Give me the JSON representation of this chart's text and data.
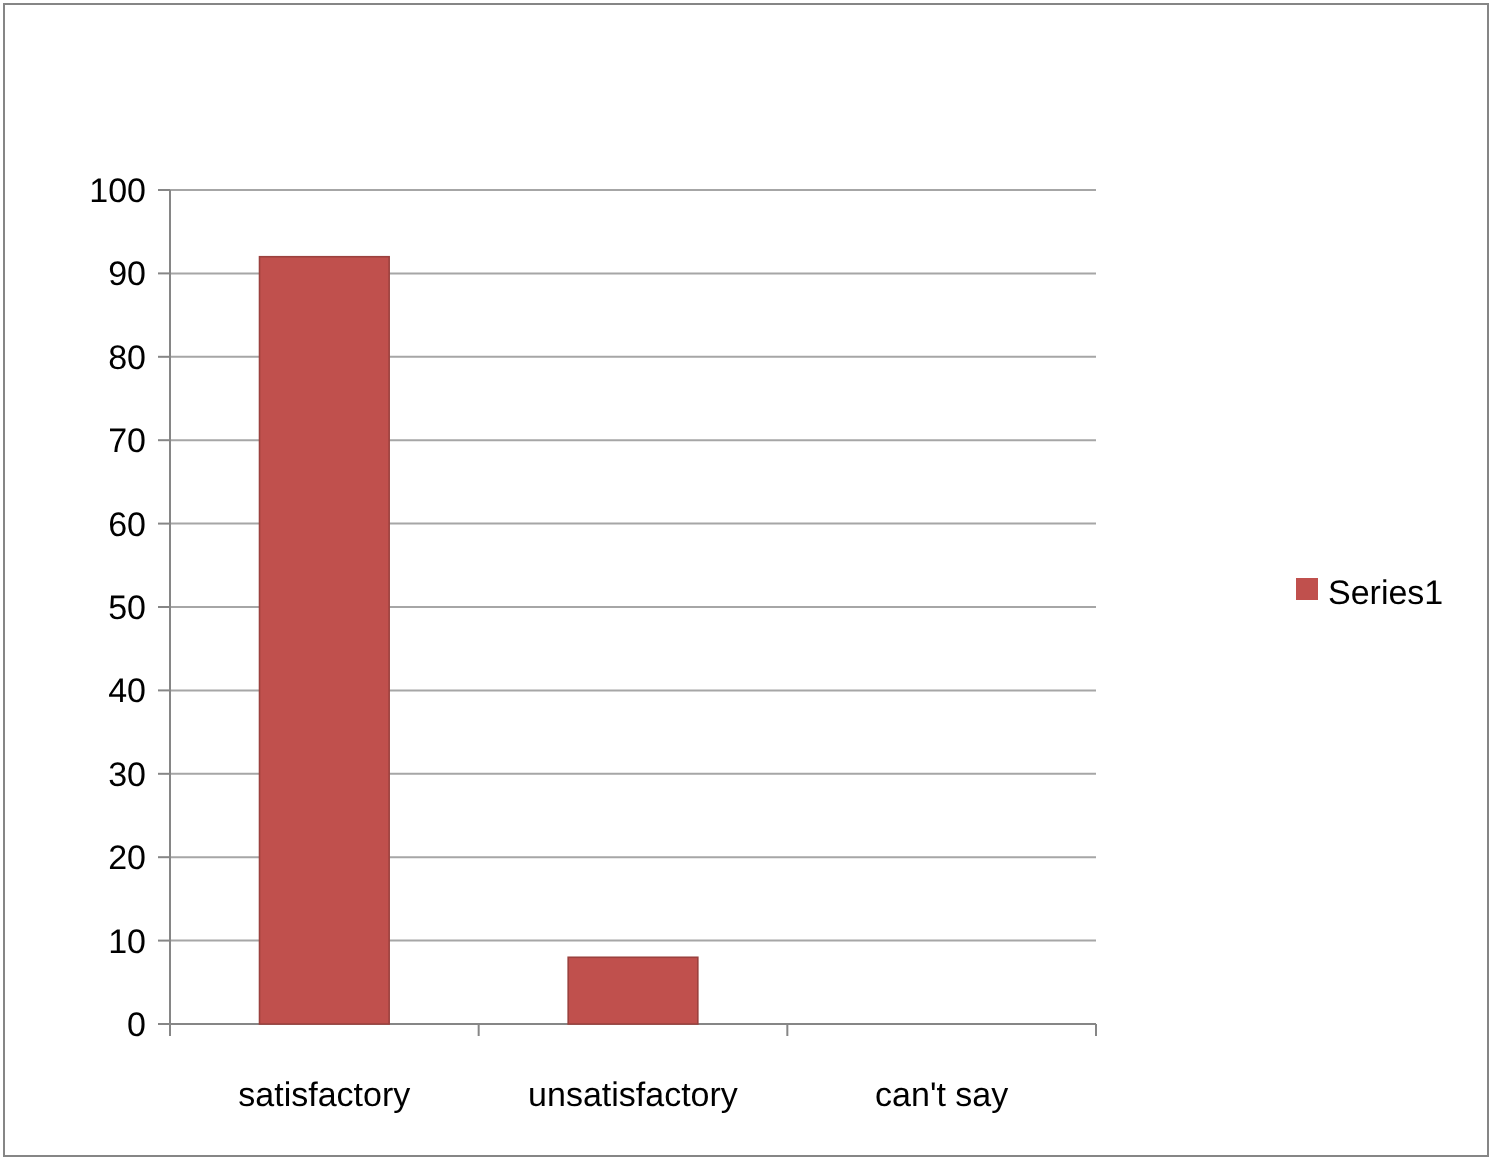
{
  "chart_data": {
    "type": "bar",
    "categories": [
      "satisfactory",
      "unsatisfactory",
      "can't say"
    ],
    "series": [
      {
        "name": "Series1",
        "color": "#c0504d",
        "values": [
          92,
          8,
          0
        ]
      }
    ],
    "ylim": [
      0,
      100
    ],
    "yticks": [
      0,
      10,
      20,
      30,
      40,
      50,
      60,
      70,
      80,
      90,
      100
    ],
    "grid": "y",
    "legend": "right"
  }
}
